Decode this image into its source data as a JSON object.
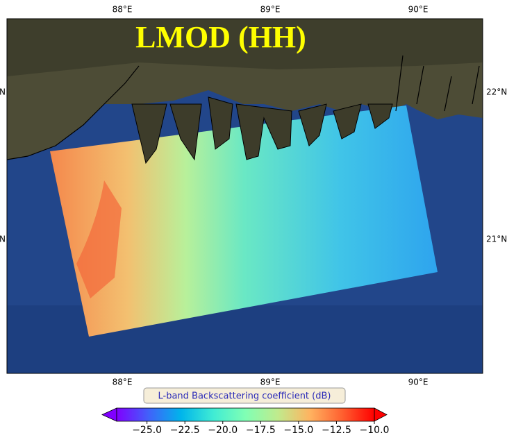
{
  "title": "LMOD (HH)",
  "map": {
    "lon_labels": [
      "88°E",
      "89°E",
      "90°E"
    ],
    "lat_labels": [
      "22°N",
      "21°N"
    ]
  },
  "colorbar": {
    "label": "L-band Backscattering coefficient (dB)",
    "lim": [
      -27,
      -10
    ],
    "ticks": [
      {
        "value": -25,
        "label": "−25.0"
      },
      {
        "value": -22.5,
        "label": "−22.5"
      },
      {
        "value": -20,
        "label": "−20.0"
      },
      {
        "value": -17.5,
        "label": "−17.5"
      },
      {
        "value": -15,
        "label": "−15.0"
      },
      {
        "value": -12.5,
        "label": "−12.5"
      },
      {
        "value": -10,
        "label": "−10.0"
      }
    ],
    "colors": [
      "#8000ff",
      "#4062fa",
      "#00b5eb",
      "#40ecd4",
      "#80ffb4",
      "#c0eb8d",
      "#ffb360",
      "#ff6030",
      "#ff0000"
    ],
    "extend": "both"
  }
}
